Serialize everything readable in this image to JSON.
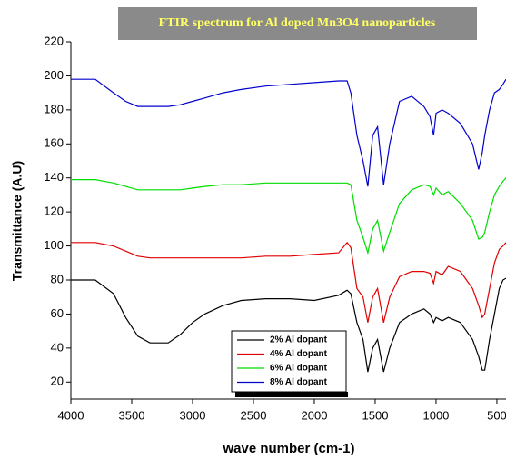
{
  "chart_data": {
    "type": "line",
    "title": "FTIR spectrum for Al doped Mn3O4 nanoparticles",
    "x_label": "wave number (cm-1)",
    "y_label": "Transmittance (A.U)",
    "x": [
      4000,
      3800,
      3650,
      3550,
      3450,
      3350,
      3200,
      3100,
      3000,
      2900,
      2750,
      2600,
      2400,
      2200,
      2000,
      1800,
      1730,
      1700,
      1650,
      1600,
      1560,
      1520,
      1480,
      1430,
      1380,
      1300,
      1200,
      1100,
      1050,
      1020,
      1000,
      950,
      900,
      800,
      700,
      650,
      620,
      600,
      560,
      520,
      480,
      450,
      425
    ],
    "series": [
      {
        "name": "2% Al dopant",
        "color": "#000000",
        "values": [
          80,
          80,
          72,
          58,
          47,
          43,
          43,
          48,
          55,
          60,
          65,
          68,
          69,
          69,
          68,
          71,
          74,
          72,
          55,
          45,
          26,
          40,
          45,
          26,
          40,
          55,
          60,
          63,
          60,
          55,
          58,
          56,
          58,
          55,
          45,
          35,
          27,
          27,
          45,
          60,
          75,
          80,
          81
        ]
      },
      {
        "name": "4% Al dopant",
        "color": "#e00000",
        "values": [
          102,
          102,
          100,
          97,
          94,
          93,
          93,
          93,
          93,
          93,
          93,
          93,
          94,
          94,
          95,
          96,
          102,
          99,
          75,
          70,
          55,
          70,
          75,
          55,
          70,
          82,
          85,
          85,
          84,
          78,
          85,
          83,
          88,
          85,
          75,
          65,
          58,
          60,
          75,
          90,
          98,
          100,
          102
        ]
      },
      {
        "name": "6% Al dopant",
        "color": "#00dd00",
        "values": [
          139,
          139,
          137,
          135,
          133,
          133,
          133,
          133,
          134,
          135,
          136,
          136,
          137,
          137,
          137,
          137,
          137,
          136,
          115,
          105,
          96,
          110,
          115,
          97,
          108,
          125,
          133,
          136,
          135,
          130,
          134,
          130,
          132,
          125,
          115,
          104,
          105,
          108,
          120,
          130,
          135,
          138,
          140
        ]
      },
      {
        "name": "8% Al dopant",
        "color": "#0000cc",
        "values": [
          198,
          198,
          190,
          185,
          182,
          182,
          182,
          183,
          185,
          187,
          190,
          192,
          194,
          195,
          196,
          197,
          197,
          190,
          165,
          150,
          135,
          165,
          170,
          136,
          160,
          185,
          188,
          182,
          176,
          165,
          178,
          180,
          178,
          172,
          160,
          145,
          155,
          165,
          180,
          190,
          192,
          195,
          198
        ]
      }
    ],
    "xlim": [
      4000,
      425
    ],
    "xticks": [
      4000,
      3500,
      3000,
      2500,
      2000,
      1500,
      1000,
      500
    ],
    "ylim": [
      10,
      220
    ],
    "yticks": [
      20,
      40,
      60,
      80,
      100,
      120,
      140,
      160,
      180,
      200,
      220
    ]
  }
}
